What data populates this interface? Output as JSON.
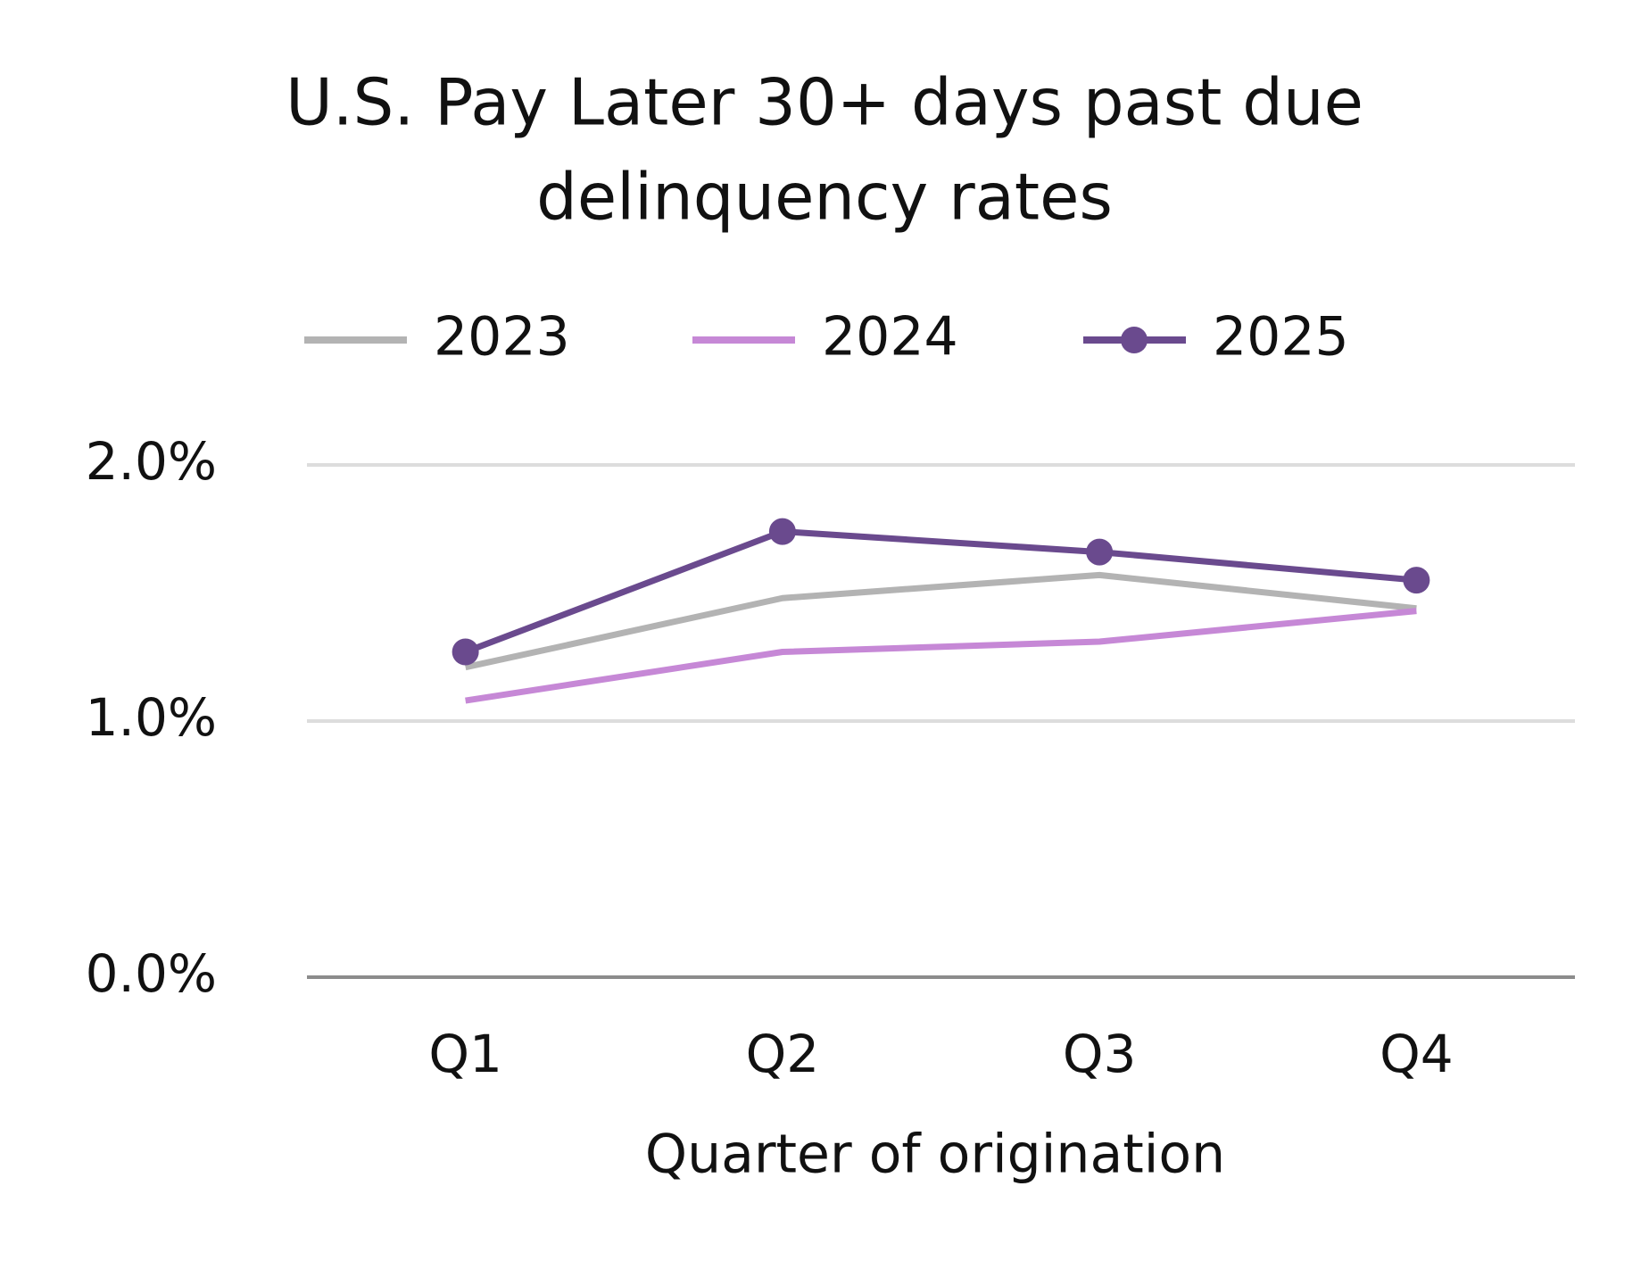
{
  "chart_data": {
    "type": "line",
    "title": [
      "U.S. Pay Later 30+ days past due",
      "delinquency rates"
    ],
    "x_label": "Quarter of origination",
    "categories": [
      "Q1",
      "Q2",
      "Q3",
      "Q4"
    ],
    "series": [
      {
        "name": "2023",
        "color": "#b3b3b3",
        "marker": false,
        "values": [
          1.21,
          1.48,
          1.57,
          1.44
        ]
      },
      {
        "name": "2024",
        "color": "#c688d6",
        "marker": false,
        "values": [
          1.08,
          1.27,
          1.31,
          1.43
        ]
      },
      {
        "name": "2025",
        "color": "#6a4a8e",
        "marker": true,
        "values": [
          1.27,
          1.74,
          1.66,
          1.55
        ]
      }
    ],
    "ylim": [
      0,
      2
    ],
    "yticks": [
      {
        "value": 0,
        "label": "0.0%"
      },
      {
        "value": 1,
        "label": "1.0%"
      },
      {
        "value": 2,
        "label": "2.0%"
      }
    ],
    "grid": true,
    "legend": "top"
  }
}
